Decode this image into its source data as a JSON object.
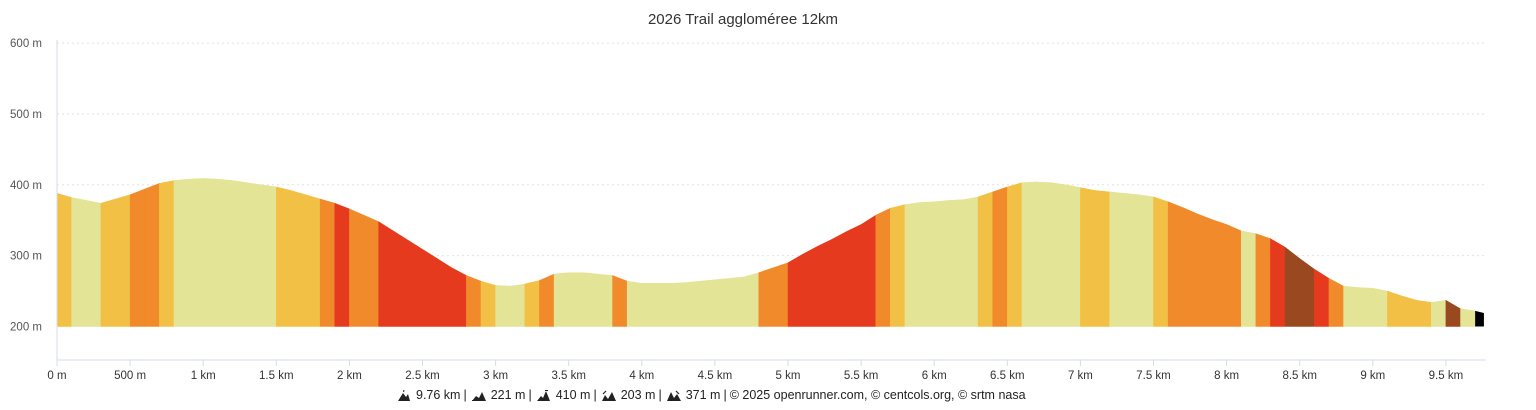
{
  "title": "2026 Trail aggloméree 12km",
  "footer": {
    "distance": "9.76 km",
    "min_alt": "221 m",
    "max_alt": "410 m",
    "ascent": "203 m",
    "descent": "371 m",
    "credits": "© 2025 openrunner.com, © centcols.org, © srtm nasa"
  },
  "chart_data": {
    "type": "area",
    "title": "2026 Trail aggloméree 12km",
    "xlabel": "",
    "ylabel": "",
    "xlim": [
      0,
      9.76
    ],
    "ylim": [
      200,
      600
    ],
    "x_ticks": [
      {
        "v": 0,
        "label": "0 m"
      },
      {
        "v": 0.5,
        "label": "500 m"
      },
      {
        "v": 1,
        "label": "1 km"
      },
      {
        "v": 1.5,
        "label": "1.5 km"
      },
      {
        "v": 2,
        "label": "2 km"
      },
      {
        "v": 2.5,
        "label": "2.5 km"
      },
      {
        "v": 3,
        "label": "3 km"
      },
      {
        "v": 3.5,
        "label": "3.5 km"
      },
      {
        "v": 4,
        "label": "4 km"
      },
      {
        "v": 4.5,
        "label": "4.5 km"
      },
      {
        "v": 5,
        "label": "5 km"
      },
      {
        "v": 5.5,
        "label": "5.5 km"
      },
      {
        "v": 6,
        "label": "6 km"
      },
      {
        "v": 6.5,
        "label": "6.5 km"
      },
      {
        "v": 7,
        "label": "7 km"
      },
      {
        "v": 7.5,
        "label": "7.5 km"
      },
      {
        "v": 8,
        "label": "8 km"
      },
      {
        "v": 8.5,
        "label": "8.5 km"
      },
      {
        "v": 9,
        "label": "9 km"
      },
      {
        "v": 9.5,
        "label": "9.5 km"
      }
    ],
    "y_ticks": [
      {
        "v": 200,
        "label": "200 m"
      },
      {
        "v": 300,
        "label": "300 m"
      },
      {
        "v": 400,
        "label": "400 m"
      },
      {
        "v": 500,
        "label": "500 m"
      },
      {
        "v": 600,
        "label": "600 m"
      }
    ],
    "grid": true,
    "elevation_m": [
      388,
      382,
      378,
      374,
      380,
      386,
      394,
      402,
      406,
      408,
      409,
      408,
      406,
      403,
      400,
      397,
      392,
      386,
      380,
      374,
      366,
      357,
      348,
      335,
      322,
      309,
      296,
      283,
      272,
      264,
      258,
      257,
      260,
      265,
      274,
      276,
      276,
      274,
      272,
      264,
      261,
      261,
      261,
      262,
      264,
      266,
      268,
      270,
      276,
      283,
      290,
      302,
      313,
      323,
      334,
      344,
      357,
      367,
      372,
      375,
      376,
      378,
      379,
      383,
      390,
      397,
      403,
      404,
      403,
      400,
      396,
      392,
      390,
      388,
      386,
      383,
      376,
      368,
      359,
      351,
      344,
      335,
      331,
      324,
      312,
      296,
      281,
      268,
      257,
      255,
      254,
      250,
      243,
      237,
      234,
      237,
      225,
      222,
      219
    ],
    "x_step_km": 0.1,
    "grade_colors": {
      "a": "#e4e497",
      "b": "#f2c044",
      "c": "#f08a2a",
      "d": "#e63a1e",
      "e": "#9a4820"
    },
    "segment_grades": "baabbccbaaaaaaabbbcdccddddddcbaabcaaaacaaaaaaaaaccddddddcbaaaaabcbaaaabbaaabcccccacdeedcaaabbbaea"
  }
}
